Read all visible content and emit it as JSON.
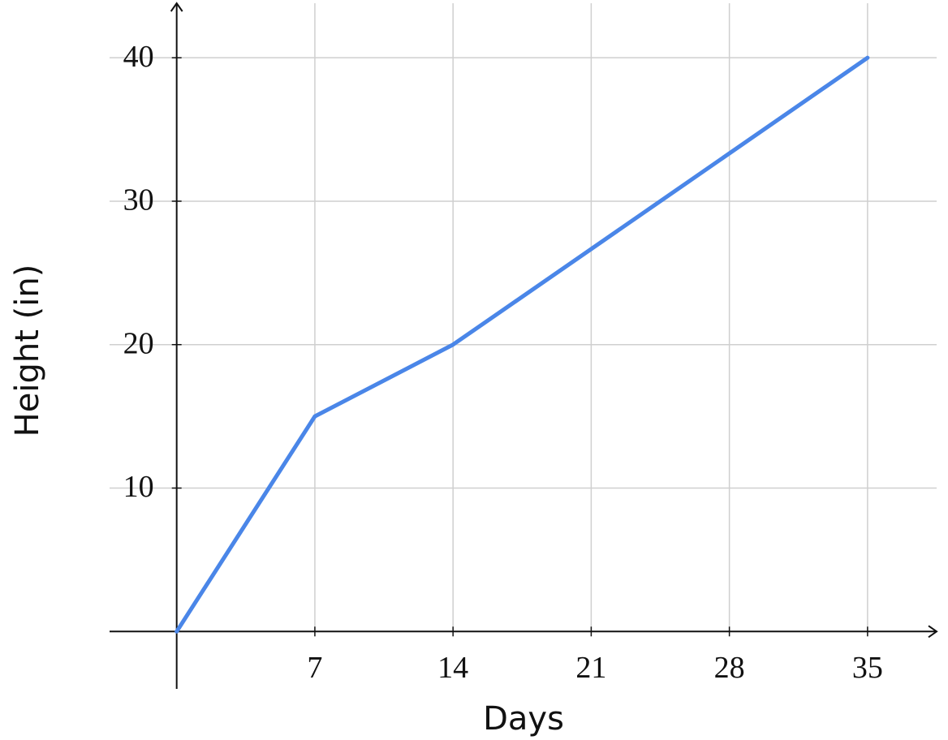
{
  "chart_data": {
    "type": "line",
    "x_label": "Days",
    "y_label": "Height (in)",
    "x": [
      0,
      7,
      14,
      35
    ],
    "series": [
      {
        "values": [
          0,
          15,
          20,
          40
        ],
        "color": "#4a86e8"
      }
    ],
    "xlim": [
      -3.4,
      38.5
    ],
    "ylim": [
      -4,
      43.8
    ],
    "xticks": [
      7,
      14,
      21,
      28,
      35
    ],
    "yticks": [
      10,
      20,
      30,
      40
    ],
    "grid": true
  }
}
